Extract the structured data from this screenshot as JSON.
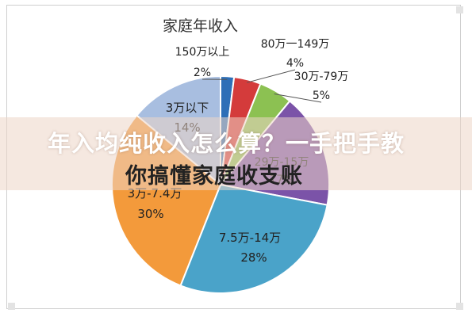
{
  "chart_data": {
    "type": "pie",
    "title": "家庭年收入",
    "slices": [
      {
        "label": "150万以上",
        "percent_label": "2%",
        "value": 2,
        "color": "#2e6fb7"
      },
      {
        "label": "80万一149万",
        "percent_label": "4%",
        "value": 4,
        "color": "#d43b3b"
      },
      {
        "label": "30万-79万",
        "percent_label": "5%",
        "value": 5,
        "color": "#8cc152"
      },
      {
        "label": "29万-15万",
        "percent_label": "17%",
        "value": 17,
        "color": "#7b53a8"
      },
      {
        "label": "7.5万-14万",
        "percent_label": "28%",
        "value": 28,
        "color": "#4aa3c9"
      },
      {
        "label": "3万-7.4万",
        "percent_label": "30%",
        "value": 30,
        "color": "#f39a3b"
      },
      {
        "label": "3万以下",
        "percent_label": "14%",
        "value": 14,
        "color": "#a8bee0"
      }
    ]
  },
  "headline": {
    "line1": "年入均纯收入怎么算？一手把手教",
    "line2": "你搞懂家庭收支账"
  }
}
